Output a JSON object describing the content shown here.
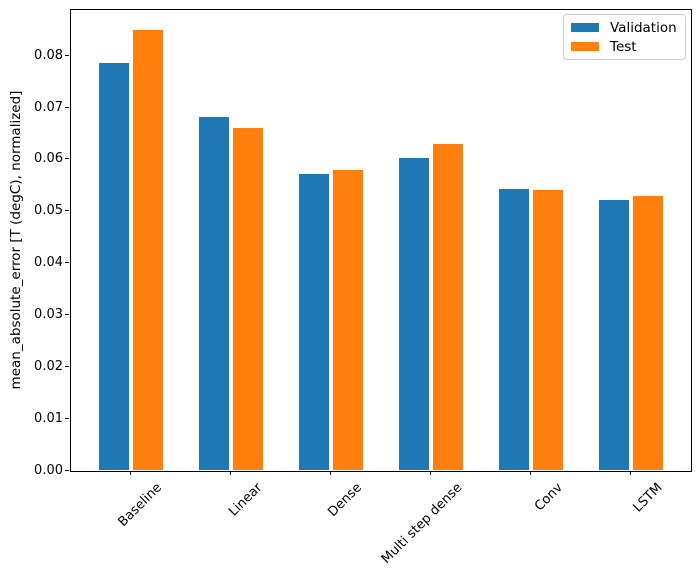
{
  "chart_data": {
    "type": "bar",
    "title": "",
    "categories": [
      "Baseline",
      "Linear",
      "Dense",
      "Multi step dense",
      "Conv",
      "LSTM"
    ],
    "series": [
      {
        "name": "Validation",
        "color": "#1f77b4",
        "values": [
          0.0784,
          0.0681,
          0.057,
          0.0602,
          0.0541,
          0.052
        ]
      },
      {
        "name": "Test",
        "color": "#ff7f0e",
        "values": [
          0.0849,
          0.0659,
          0.0579,
          0.0629,
          0.054,
          0.0529
        ]
      }
    ],
    "xlabel": "",
    "ylabel": "mean_absolute_error [T (degC), normalized]",
    "ylim": [
      0,
      0.0889
    ],
    "ytick_values": [
      0,
      0.01,
      0.02,
      0.03,
      0.04,
      0.05,
      0.06,
      0.07,
      0.08
    ],
    "ytick_labels": [
      "0.00",
      "0.01",
      "0.02",
      "0.03",
      "0.04",
      "0.05",
      "0.06",
      "0.07",
      "0.08"
    ],
    "legend": {
      "position": "upper right",
      "entries": [
        "Validation",
        "Test"
      ]
    },
    "grid": false,
    "axis_color": "#000000",
    "background": "#ffffff",
    "bar_layout": {
      "group_offset": 0.17,
      "bar_width": 0.3
    }
  }
}
